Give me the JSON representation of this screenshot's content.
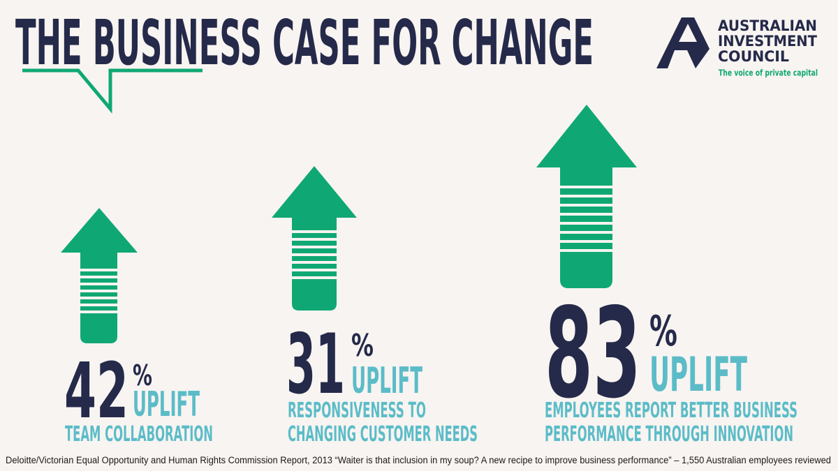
{
  "header": {
    "title": "THE BUSINESS CASE FOR CHANGE"
  },
  "logo": {
    "lines": [
      "AUSTRALIAN",
      "INVESTMENT",
      "COUNCIL"
    ],
    "tagline": "The voice of private capital"
  },
  "stats": [
    {
      "value": 42,
      "unit": "%",
      "label": "UPLIFT",
      "description": [
        "TEAM COLLABORATION"
      ]
    },
    {
      "value": 31,
      "unit": "%",
      "label": "UPLIFT",
      "description": [
        "RESPONSIVENESS TO",
        "CHANGING CUSTOMER NEEDS"
      ]
    },
    {
      "value": 83,
      "unit": "%",
      "label": "UPLIFT",
      "description": [
        "EMPLOYEES REPORT BETTER BUSINESS",
        "PERFORMANCE THROUGH INNOVATION"
      ]
    }
  ],
  "footnote": "Deloitte/Victorian Equal Opportunity and Human Rights Commission Report, 2013 “Waiter is that inclusion in my soup? A new recipe to improve business performance” – 1,550 Australian employees reviewed"
}
